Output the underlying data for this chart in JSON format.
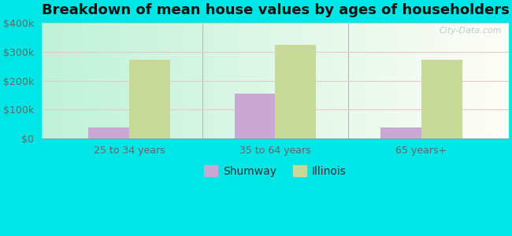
{
  "title": "Breakdown of mean house values by ages of householders",
  "categories": [
    "25 to 34 years",
    "35 to 64 years",
    "65 years+"
  ],
  "shumway_values": [
    37000,
    155000,
    37000
  ],
  "illinois_values": [
    272000,
    325000,
    272000
  ],
  "shumway_color": "#c9a8d4",
  "illinois_color": "#c8d896",
  "ylim": [
    0,
    400000
  ],
  "yticks": [
    0,
    100000,
    200000,
    300000,
    400000
  ],
  "ytick_labels": [
    "$0",
    "$100k",
    "$200k",
    "$300k",
    "$400k"
  ],
  "fig_bg_color": "#00e5e5",
  "bar_width": 0.28,
  "legend_labels": [
    "Shumway",
    "Illinois"
  ],
  "title_fontsize": 13,
  "tick_fontsize": 9,
  "legend_fontsize": 10,
  "grid_color": "#e8c8c8",
  "separator_color": "#aaaaaa",
  "watermark_text": "City-Data.com",
  "watermark_color": "#b0c8c8"
}
